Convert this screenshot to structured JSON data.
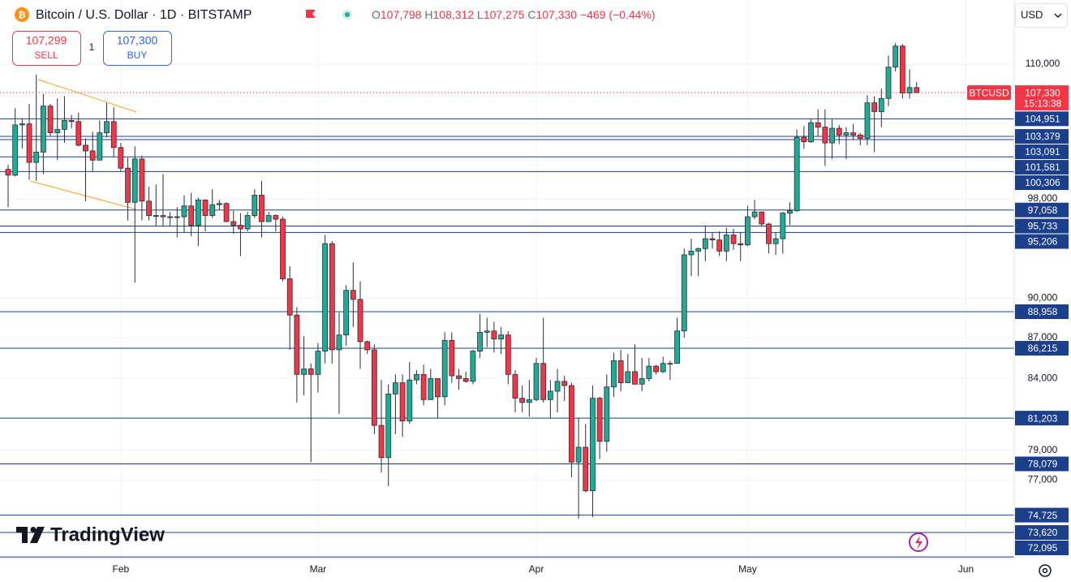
{
  "header": {
    "title": "Bitcoin / U.S. Dollar · 1D · BITSTAMP",
    "ohlc": [
      {
        "key": "O",
        "value": "107,798"
      },
      {
        "key": "H",
        "value": "108,312"
      },
      {
        "key": "L",
        "value": "107,275"
      },
      {
        "key": "C",
        "value": "107,330"
      }
    ],
    "change": "−469 (−0.44%)"
  },
  "trade": {
    "sell_price": "107,299",
    "sell": "SELL",
    "quantity": "1",
    "buy_price": "107,300",
    "buy": "BUY"
  },
  "currency": "USD",
  "logo": "TradingView",
  "chart_data": {
    "type": "candlestick",
    "log_scale": true,
    "grid": true,
    "up_color": "#22ab94",
    "down_color": "#f23645",
    "level_color": "#1c3f8c",
    "ylim": [
      72000,
      116200
    ],
    "yticks": [
      {
        "value": 110000,
        "label": "110,000"
      },
      {
        "value": 98000,
        "label": "98,000"
      },
      {
        "value": 90000,
        "label": "90,000"
      },
      {
        "value": 87000,
        "label": "87,000"
      },
      {
        "value": 84000,
        "label": "84,000"
      },
      {
        "value": 79000,
        "label": "79,000"
      },
      {
        "value": 77000,
        "label": "77,000"
      }
    ],
    "xticks": [
      {
        "value": 16,
        "label": "Feb"
      },
      {
        "value": 44,
        "label": "Mar"
      },
      {
        "value": 75,
        "label": "Apr"
      },
      {
        "value": 105,
        "label": "May"
      },
      {
        "value": 136,
        "label": "Jun"
      }
    ],
    "levels": [
      {
        "value": 104951,
        "label": "104,951"
      },
      {
        "value": 103379,
        "label": "103,379"
      },
      {
        "value": 103091,
        "label": "103,091"
      },
      {
        "value": 101581,
        "label": "101,581"
      },
      {
        "value": 100306,
        "label": "100,306"
      },
      {
        "value": 97058,
        "label": "97,058"
      },
      {
        "value": 95733,
        "label": "95,733"
      },
      {
        "value": 95206,
        "label": "95,206"
      },
      {
        "value": 88958,
        "label": "88,958"
      },
      {
        "value": 86215,
        "label": "86,215"
      },
      {
        "value": 81203,
        "label": "81,203"
      },
      {
        "value": 78079,
        "label": "78,079"
      },
      {
        "value": 74725,
        "label": "74,725"
      },
      {
        "value": 73620,
        "label": "73,620"
      },
      {
        "value": 72095,
        "label": "72,095"
      }
    ],
    "price_tag": {
      "name": "BTCUSD",
      "value": 107330,
      "label": "107,330",
      "timer": "15:13:38"
    },
    "open": [
      100500,
      100000,
      104400,
      104500,
      101100,
      102000,
      106100,
      103700,
      104000,
      104800,
      104700,
      102600,
      102100,
      101300,
      103700,
      104700,
      102400,
      100600,
      97700,
      101400,
      97800,
      96600,
      96600,
      96500,
      96500,
      96500,
      97400,
      95800,
      97900,
      96600,
      97500,
      97600,
      96100,
      95800,
      95500,
      96600,
      98300,
      96100,
      96600,
      96300,
      91500,
      88700,
      84300,
      84700,
      84300,
      86000,
      94300,
      86100,
      87200,
      90600,
      89900,
      86700,
      86100,
      80700,
      78500,
      82900,
      83700,
      81000,
      83900,
      84300,
      82500,
      84000,
      82700,
      86800,
      84200,
      84000,
      83800,
      86000,
      87400,
      87500,
      86900,
      87200,
      84300,
      82600,
      82300,
      82500,
      85100,
      82500,
      83100,
      83800,
      83500,
      78200,
      79200,
      76300,
      82600,
      79600,
      83400,
      85300,
      83700,
      84500,
      83600,
      84000,
      84900,
      84500,
      85100,
      85100,
      87500,
      93400,
      93700,
      93900,
      94700,
      94600,
      93700,
      95000,
      94300,
      94200,
      96500,
      96900,
      95900,
      94300,
      94700,
      96800,
      97000,
      103300,
      102900,
      104600,
      104200,
      102800,
      104100,
      103500,
      103700,
      103500,
      103200,
      106400,
      105600,
      106800,
      109700,
      111700,
      107300,
      107798
    ],
    "high": [
      100900,
      105900,
      105000,
      106300,
      109000,
      107200,
      106300,
      106800,
      107000,
      105300,
      105500,
      103200,
      103800,
      104800,
      106400,
      106000,
      102800,
      101500,
      102500,
      101700,
      99000,
      99200,
      100100,
      96900,
      97300,
      98300,
      98500,
      98100,
      97900,
      98800,
      97900,
      97700,
      97000,
      96800,
      96900,
      98800,
      99500,
      96900,
      96700,
      96500,
      92500,
      89300,
      87100,
      85100,
      86600,
      95000,
      94500,
      88900,
      91000,
      92800,
      91300,
      86800,
      86500,
      83900,
      83600,
      84300,
      84300,
      85200,
      84600,
      85000,
      84700,
      84000,
      87400,
      87400,
      84700,
      84500,
      86100,
      88800,
      88500,
      88200,
      87800,
      87500,
      84600,
      83500,
      83900,
      85500,
      88500,
      83900,
      84700,
      84200,
      83700,
      81200,
      80800,
      83500,
      82700,
      84300,
      85900,
      86100,
      85800,
      86500,
      85500,
      85500,
      85000,
      85600,
      85300,
      88500,
      93900,
      94700,
      94000,
      95800,
      95200,
      95300,
      95600,
      95500,
      95200,
      97400,
      97900,
      96900,
      96000,
      95200,
      96900,
      97700,
      104000,
      104300,
      104900,
      105800,
      105800,
      104900,
      104400,
      104200,
      104500,
      103700,
      107100,
      107000,
      107700,
      110800,
      112000,
      111900,
      109500,
      108312
    ],
    "low": [
      97300,
      99900,
      102300,
      99600,
      99500,
      100100,
      103400,
      101300,
      102800,
      104100,
      102500,
      97800,
      100300,
      101300,
      103300,
      101600,
      100300,
      96200,
      91200,
      96200,
      96200,
      95700,
      95700,
      95700,
      94800,
      95200,
      94900,
      94100,
      95300,
      96400,
      97100,
      96100,
      95100,
      93300,
      95300,
      96400,
      94800,
      96100,
      95300,
      91300,
      86100,
      82300,
      82800,
      78200,
      83000,
      85100,
      85100,
      81500,
      86400,
      87800,
      84700,
      85800,
      80100,
      77500,
      76600,
      80100,
      79900,
      80800,
      83600,
      82100,
      82500,
      81200,
      82100,
      83700,
      83200,
      83700,
      83600,
      85500,
      86300,
      85900,
      85800,
      83600,
      81600,
      81600,
      81300,
      82400,
      82300,
      81200,
      81600,
      82400,
      77200,
      74500,
      76200,
      74600,
      78400,
      78900,
      82700,
      83100,
      83700,
      83600,
      83100,
      83800,
      84300,
      84400,
      83900,
      85100,
      87000,
      91700,
      91700,
      92900,
      93900,
      93300,
      92900,
      93800,
      92900,
      94100,
      96300,
      95700,
      93500,
      93400,
      93500,
      95800,
      96900,
      102300,
      102800,
      103400,
      100800,
      101400,
      102700,
      101400,
      103100,
      102600,
      102600,
      102000,
      104200,
      106100,
      109300,
      106800,
      106800,
      107275
    ],
    "close": [
      100000,
      104400,
      104500,
      101100,
      102000,
      106100,
      103700,
      104000,
      104800,
      104700,
      102600,
      102100,
      101300,
      103700,
      104700,
      102400,
      100600,
      97700,
      101400,
      97800,
      96600,
      96600,
      96500,
      96500,
      96500,
      97400,
      95800,
      97900,
      96600,
      97500,
      97600,
      96100,
      95800,
      95500,
      96600,
      98300,
      96100,
      96600,
      96300,
      91500,
      88700,
      84300,
      84700,
      84300,
      86000,
      94300,
      86100,
      87200,
      90600,
      89900,
      86700,
      86100,
      80700,
      78500,
      82900,
      83700,
      81000,
      83900,
      84300,
      82500,
      84000,
      82700,
      86800,
      84200,
      84000,
      83800,
      86000,
      87400,
      87500,
      86900,
      87200,
      84300,
      82600,
      82300,
      82500,
      85100,
      82500,
      83100,
      83800,
      83500,
      78200,
      79200,
      76300,
      82600,
      79600,
      83400,
      85300,
      83700,
      84500,
      83600,
      84000,
      84900,
      84500,
      85100,
      85100,
      87500,
      93400,
      93700,
      93900,
      94700,
      94600,
      93700,
      95000,
      94300,
      94200,
      96500,
      96900,
      95900,
      94300,
      94700,
      96800,
      97000,
      103300,
      102900,
      104600,
      104200,
      102800,
      104100,
      103500,
      103700,
      103500,
      103200,
      106400,
      105600,
      106800,
      109700,
      111700,
      107300,
      107800,
      107330
    ]
  }
}
